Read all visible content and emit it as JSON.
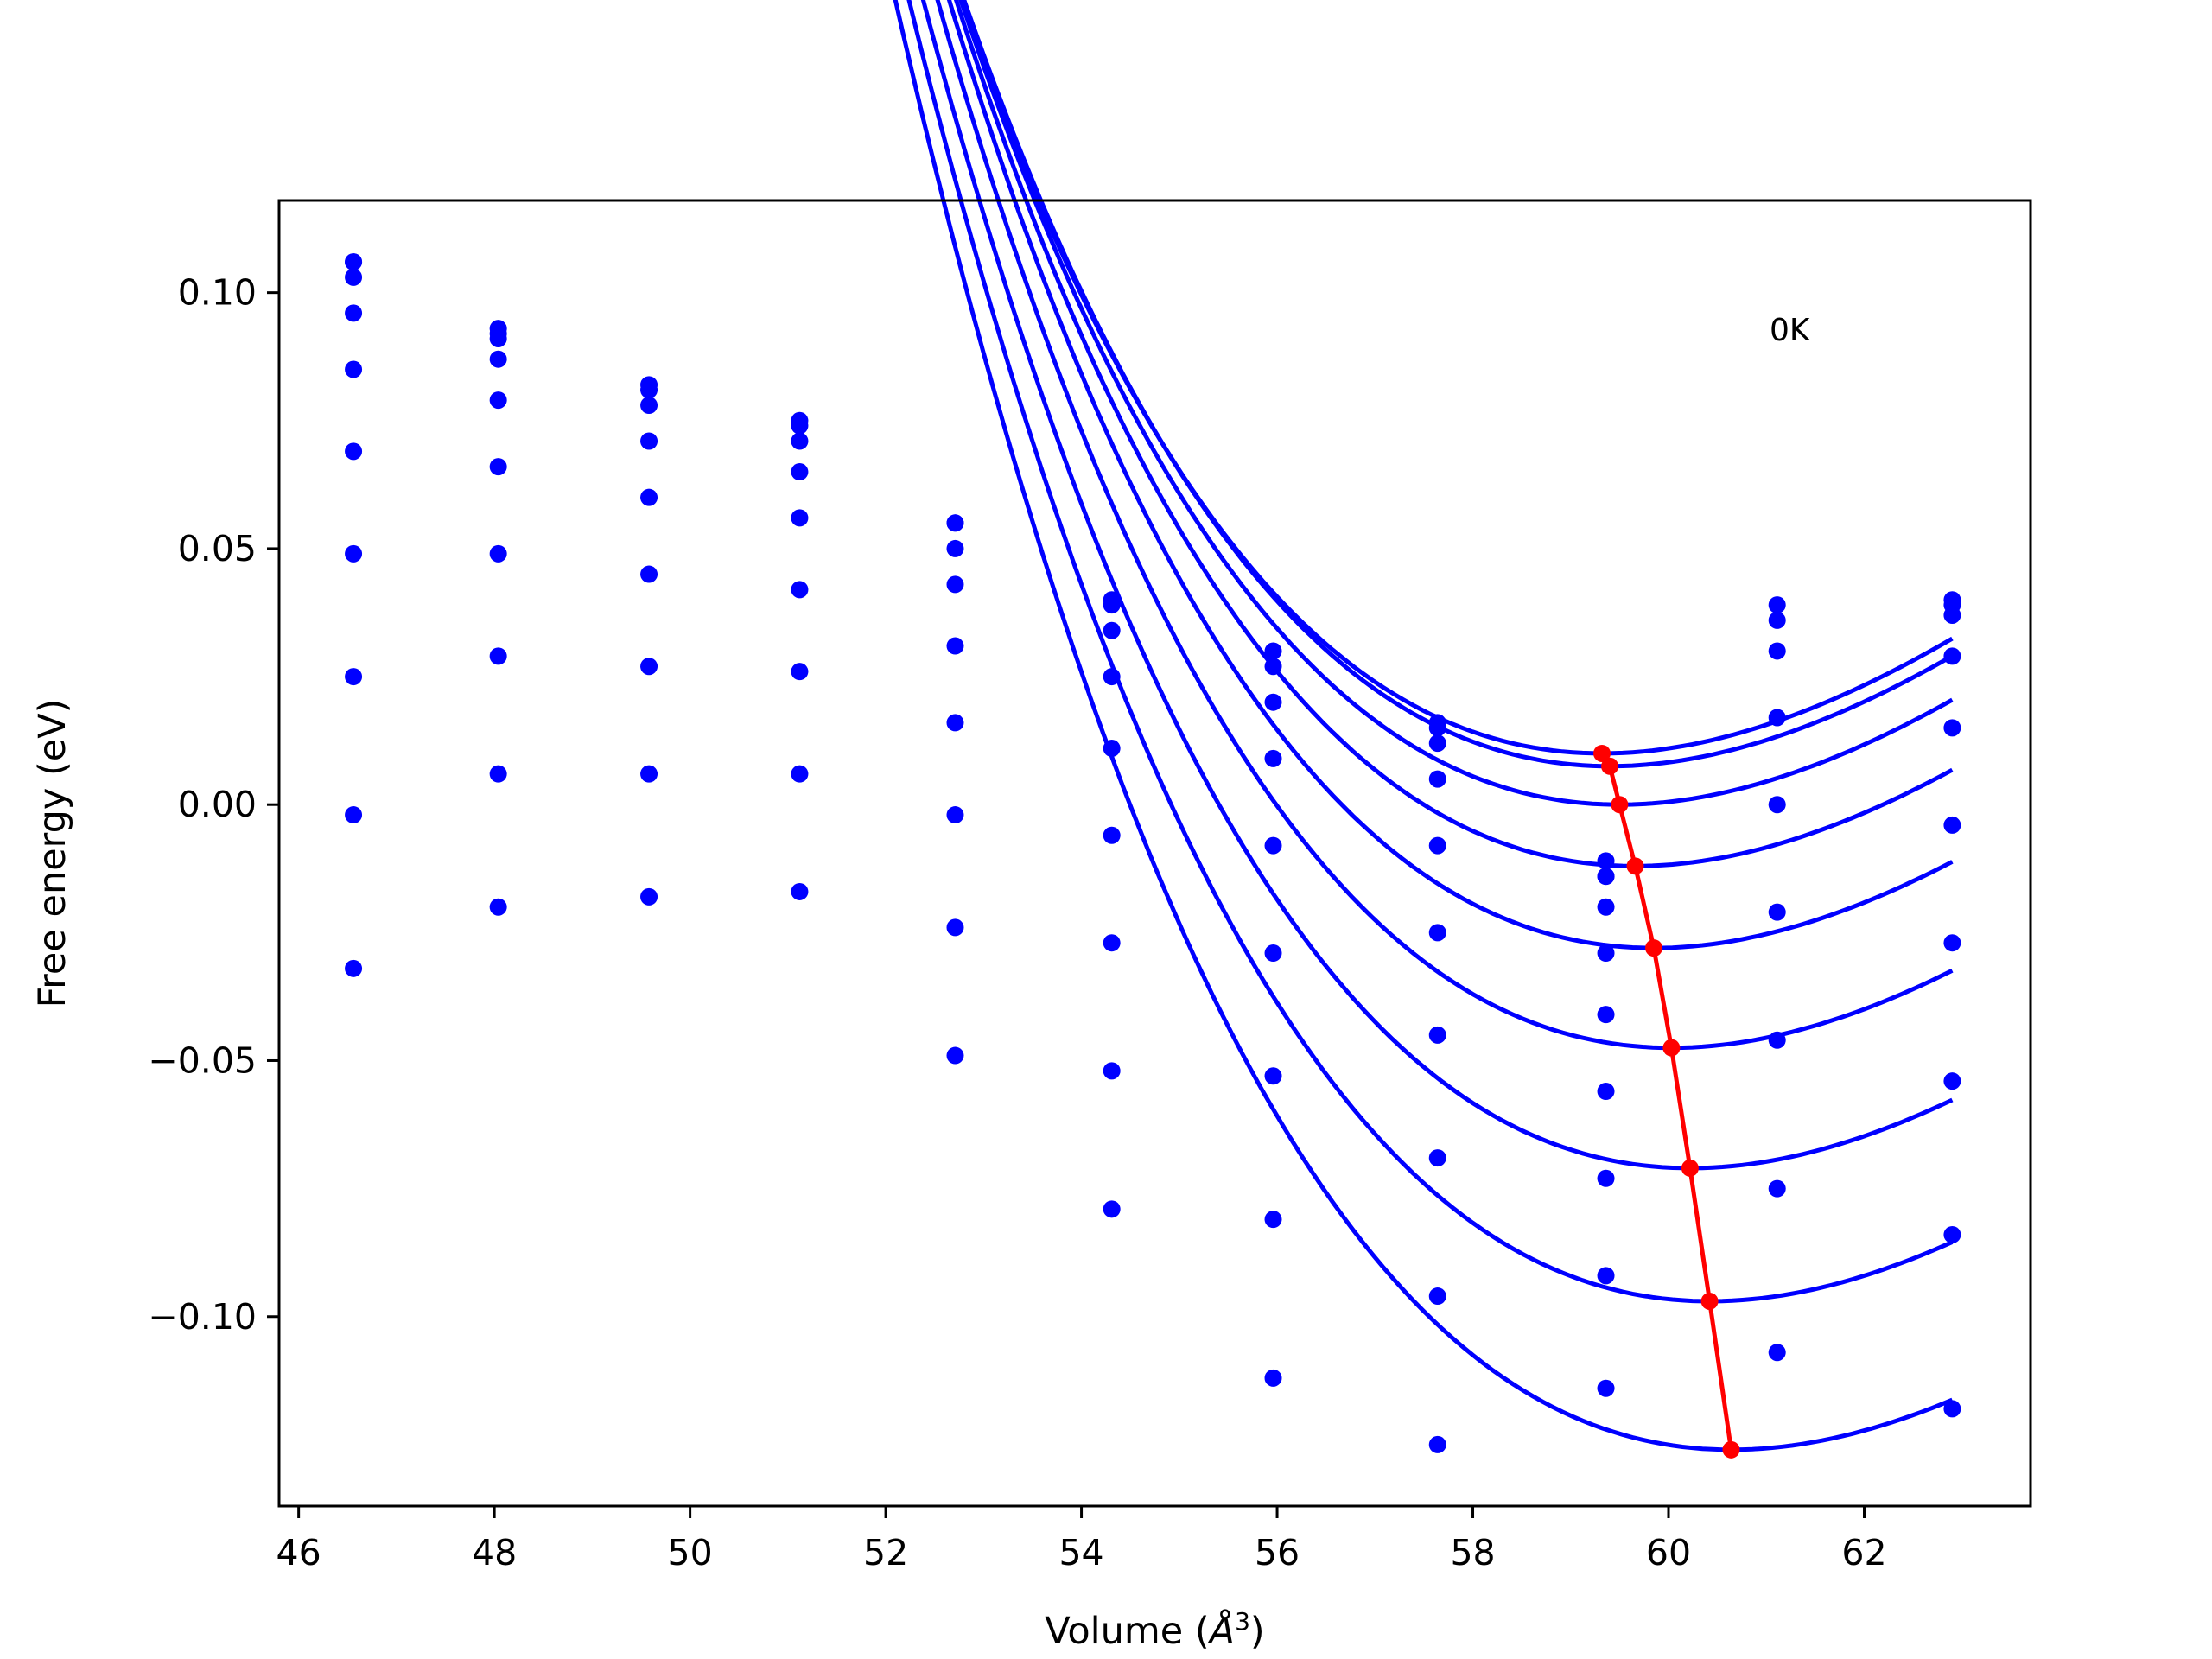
{
  "chart_data": {
    "type": "scatter",
    "title": "",
    "xlabel_prefix": "Volume (",
    "xlabel_symbol": "Å",
    "xlabel_exp": "3",
    "xlabel_suffix": ")",
    "ylabel": "Free energy (eV)",
    "annotation": "0K",
    "xlim": [
      45.8,
      63.7
    ],
    "ylim": [
      -0.137,
      0.118
    ],
    "xticks": [
      46,
      48,
      50,
      52,
      54,
      56,
      58,
      60,
      62
    ],
    "xtick_labels": [
      "46",
      "48",
      "50",
      "52",
      "54",
      "56",
      "58",
      "60",
      "62"
    ],
    "yticks": [
      0.1,
      0.05,
      0.0,
      -0.05,
      -0.1
    ],
    "ytick_labels": [
      "0.10",
      "0.05",
      "0.00",
      "−0.05",
      "−0.10"
    ],
    "volumes": [
      46.56,
      48.04,
      49.58,
      51.12,
      52.71,
      54.31,
      55.96,
      57.64,
      59.36,
      61.11,
      62.9
    ],
    "grid": false,
    "legend": "none",
    "colors": {
      "points": "#0000ff",
      "curves": "#0000ff",
      "minima": "#ff0000"
    },
    "series": [
      {
        "points": [
          0.106,
          0.093,
          0.082,
          0.075,
          0.055,
          0.04,
          0.03,
          0.016,
          -0.011,
          0.039,
          0.04
        ],
        "curve": {
          "v_min": 59.32,
          "f_min": 0.01,
          "a": -0.00015,
          "b": 0.00222,
          "c": 0.00052,
          "v_start": 46.56,
          "v_end": 62.9
        }
      },
      {
        "points": [
          0.106,
          0.092,
          0.081,
          0.074,
          0.055,
          0.039,
          0.027,
          0.015,
          -0.014,
          0.036,
          0.039
        ],
        "curve": {
          "v_min": 59.4,
          "f_min": 0.0075,
          "a": -0.00015,
          "b": 0.00222,
          "c": 0.00052,
          "v_start": 46.56,
          "v_end": 62.9
        }
      },
      {
        "points": [
          0.103,
          0.091,
          0.078,
          0.071,
          0.05,
          0.034,
          0.02,
          0.012,
          -0.014,
          0.03,
          0.037
        ],
        "curve": {
          "v_min": 59.5,
          "f_min": 0.0,
          "a": -0.00015,
          "b": 0.00222,
          "c": 0.00052,
          "v_start": 46.56,
          "v_end": 62.9
        }
      },
      {
        "points": [
          0.096,
          0.087,
          0.071,
          0.065,
          0.043,
          0.025,
          0.009,
          0.005,
          -0.02,
          0.017,
          0.029
        ],
        "curve": {
          "v_min": 59.66,
          "f_min": -0.012,
          "a": -0.00015,
          "b": 0.00222,
          "c": 0.00052,
          "v_start": 46.56,
          "v_end": 62.9
        }
      },
      {
        "points": [
          0.085,
          0.079,
          0.06,
          0.056,
          0.031,
          0.011,
          -0.008,
          -0.008,
          -0.029,
          0.0,
          0.015
        ],
        "curve": {
          "v_min": 59.85,
          "f_min": -0.028,
          "a": -0.00015,
          "b": 0.00222,
          "c": 0.00052,
          "v_start": 46.56,
          "v_end": 62.9
        }
      },
      {
        "points": [
          0.069,
          0.066,
          0.045,
          0.042,
          0.016,
          -0.006,
          -0.029,
          -0.025,
          -0.041,
          -0.021,
          -0.004
        ],
        "curve": {
          "v_min": 60.03,
          "f_min": -0.0475,
          "a": -0.00015,
          "b": 0.00222,
          "c": 0.00052,
          "v_start": 46.56,
          "v_end": 62.9
        }
      },
      {
        "points": [
          0.049,
          0.049,
          0.027,
          0.026,
          -0.002,
          -0.027,
          -0.053,
          -0.045,
          -0.056,
          -0.046,
          -0.027
        ],
        "curve": {
          "v_min": 60.22,
          "f_min": -0.071,
          "a": -0.00015,
          "b": 0.00222,
          "c": 0.00052,
          "v_start": 46.56,
          "v_end": 62.9
        }
      },
      {
        "points": [
          0.025,
          0.029,
          0.006,
          0.006,
          -0.024,
          -0.052,
          -0.081,
          -0.069,
          -0.073,
          -0.075,
          -0.054
        ],
        "curve": {
          "v_min": 60.42,
          "f_min": -0.097,
          "a": -0.00015,
          "b": 0.00222,
          "c": 0.00052,
          "v_start": 46.56,
          "v_end": 62.9
        }
      },
      {
        "points": [
          -0.002,
          0.006,
          -0.018,
          -0.017,
          -0.049,
          -0.079,
          -0.112,
          -0.096,
          -0.092,
          -0.107,
          -0.084
        ],
        "curve": {
          "v_min": 60.64,
          "f_min": -0.126,
          "a": -0.00015,
          "b": 0.00222,
          "c": 0.00052,
          "v_start": 46.56,
          "v_end": 62.9
        }
      },
      {
        "points": [
          -0.032,
          -0.02,
          null,
          null,
          null,
          null,
          null,
          -0.125,
          -0.114,
          null,
          -0.118
        ]
      }
    ],
    "minima_line": {
      "x": [
        59.32,
        59.4,
        59.5,
        59.66,
        59.85,
        60.03,
        60.22,
        60.42,
        60.64
      ],
      "y": [
        0.01,
        0.0075,
        0.0,
        -0.012,
        -0.028,
        -0.0475,
        -0.071,
        -0.097,
        -0.126
      ]
    }
  }
}
